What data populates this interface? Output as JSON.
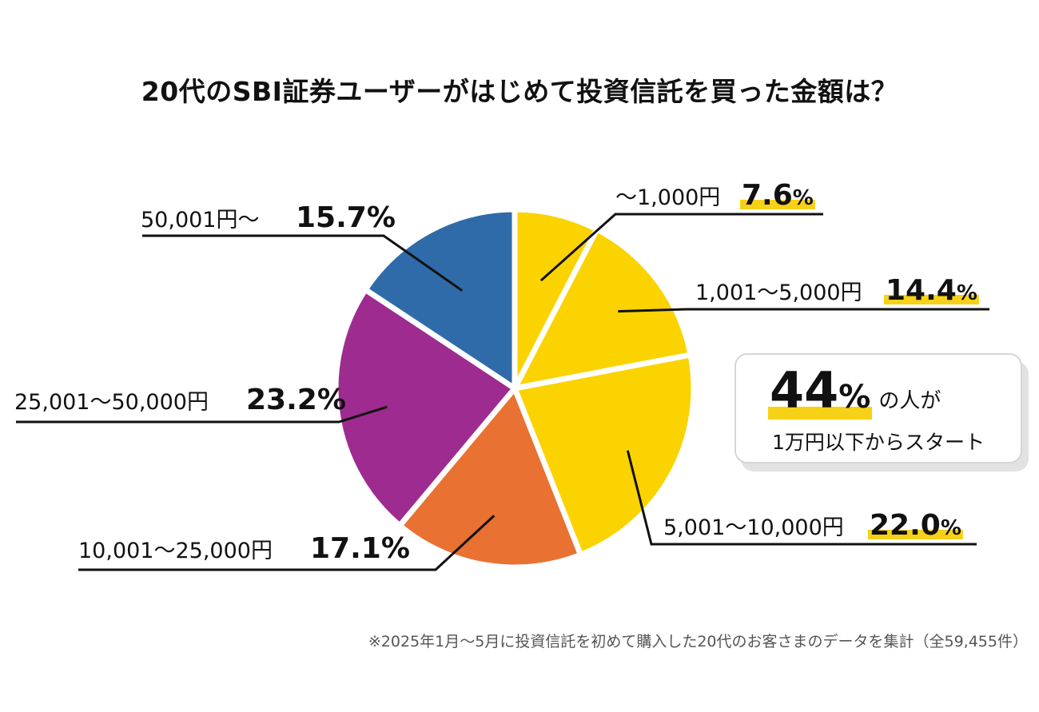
{
  "title": "20代のSBI証券ユーザーがはじめて投資信託を買った金額は？",
  "colors": {
    "yellow": "#FBD300",
    "orange": "#E97132",
    "purple": "#9E2B8F",
    "blue": "#2F6BA8",
    "highlight": "#F7D117"
  },
  "chart_data": {
    "type": "pie",
    "title": "20代のSBI証券ユーザーがはじめて投資信託を買った金額は？",
    "slices": [
      {
        "label": "～1,000円",
        "value": 7.6,
        "display": "7.6",
        "color": "#FBD300"
      },
      {
        "label": "1,001～5,000円",
        "value": 14.4,
        "display": "14.4",
        "color": "#FBD300"
      },
      {
        "label": "5,001～10,000円",
        "value": 22.0,
        "display": "22.0",
        "color": "#FBD300"
      },
      {
        "label": "10,001～25,000円",
        "value": 17.1,
        "display": "17.1%",
        "color": "#E97132"
      },
      {
        "label": "25,001～50,000円",
        "value": 23.2,
        "display": "23.2%",
        "color": "#9E2B8F"
      },
      {
        "label": "50,001円～",
        "value": 15.7,
        "display": "15.7%",
        "color": "#2F6BA8"
      }
    ],
    "percent_sign": "%"
  },
  "callout": {
    "number": "44",
    "unit": "%",
    "suffix": "の人が",
    "line2": "1万円以下からスタート"
  },
  "footnote": "※2025年1月～5月に投資信託を初めて購入した20代のお客さまのデータを集計（全59,455件）"
}
